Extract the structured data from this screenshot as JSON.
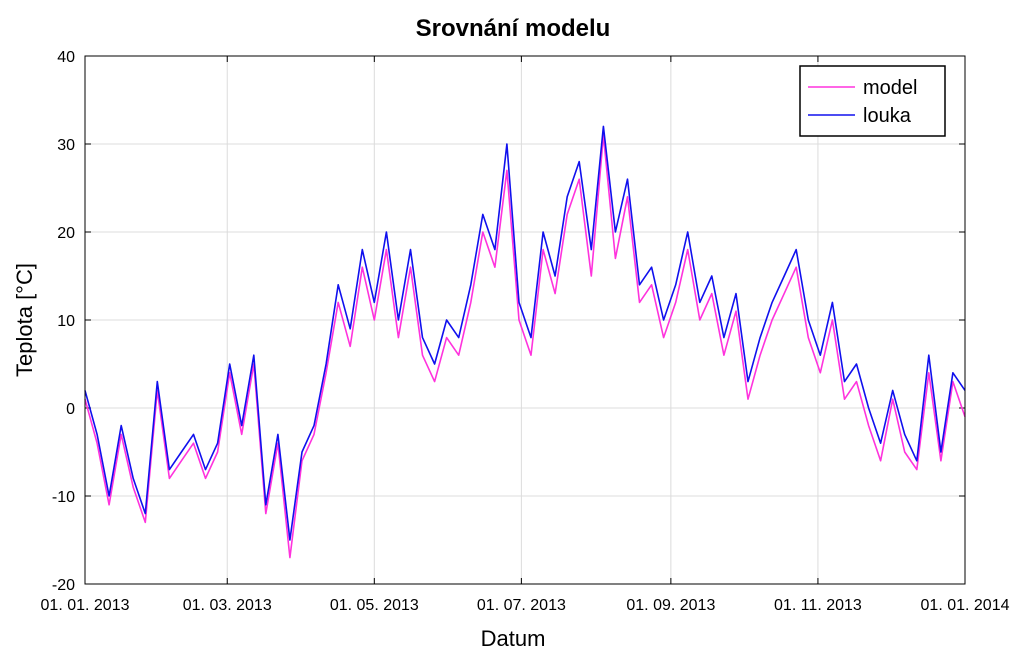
{
  "chart_data": {
    "type": "line",
    "title": "Srovnání modelu",
    "x_label": "Datum",
    "y_label": "Teplota [°C]",
    "x": [
      "2013-01-01",
      "2013-01-06",
      "2013-01-11",
      "2013-01-16",
      "2013-01-21",
      "2013-01-26",
      "2013-01-31",
      "2013-02-05",
      "2013-02-10",
      "2013-02-15",
      "2013-02-20",
      "2013-02-25",
      "2013-03-02",
      "2013-03-07",
      "2013-03-12",
      "2013-03-17",
      "2013-03-22",
      "2013-03-27",
      "2013-04-01",
      "2013-04-06",
      "2013-04-11",
      "2013-04-16",
      "2013-04-21",
      "2013-04-26",
      "2013-05-01",
      "2013-05-06",
      "2013-05-11",
      "2013-05-16",
      "2013-05-21",
      "2013-05-26",
      "2013-05-31",
      "2013-06-05",
      "2013-06-10",
      "2013-06-15",
      "2013-06-20",
      "2013-06-25",
      "2013-06-30",
      "2013-07-05",
      "2013-07-10",
      "2013-07-15",
      "2013-07-20",
      "2013-07-25",
      "2013-07-30",
      "2013-08-04",
      "2013-08-09",
      "2013-08-14",
      "2013-08-19",
      "2013-08-24",
      "2013-08-29",
      "2013-09-03",
      "2013-09-08",
      "2013-09-13",
      "2013-09-18",
      "2013-09-23",
      "2013-09-28",
      "2013-10-03",
      "2013-10-08",
      "2013-10-13",
      "2013-10-18",
      "2013-10-23",
      "2013-10-28",
      "2013-11-02",
      "2013-11-07",
      "2013-11-12",
      "2013-11-17",
      "2013-11-22",
      "2013-11-27",
      "2013-12-02",
      "2013-12-07",
      "2013-12-12",
      "2013-12-17",
      "2013-12-22",
      "2013-12-27",
      "2014-01-01"
    ],
    "series": [
      {
        "name": "model",
        "color": "#ff33dd",
        "values": [
          1,
          -4,
          -11,
          -3,
          -9,
          -13,
          2,
          -8,
          -6,
          -4,
          -8,
          -5,
          4,
          -3,
          5,
          -12,
          -4,
          -17,
          -6,
          -3,
          4,
          12,
          7,
          16,
          10,
          18,
          8,
          16,
          6,
          3,
          8,
          6,
          12,
          20,
          16,
          27,
          10,
          6,
          18,
          13,
          22,
          26,
          15,
          31,
          17,
          24,
          12,
          14,
          8,
          12,
          18,
          10,
          13,
          6,
          11,
          1,
          6,
          10,
          13,
          16,
          8,
          4,
          10,
          1,
          3,
          -2,
          -6,
          1,
          -5,
          -7,
          4,
          -6,
          3,
          -1
        ]
      },
      {
        "name": "louka",
        "color": "#1010ee",
        "values": [
          2,
          -3,
          -10,
          -2,
          -8,
          -12,
          3,
          -7,
          -5,
          -3,
          -7,
          -4,
          5,
          -2,
          6,
          -11,
          -3,
          -15,
          -5,
          -2,
          5,
          14,
          9,
          18,
          12,
          20,
          10,
          18,
          8,
          5,
          10,
          8,
          14,
          22,
          18,
          30,
          12,
          8,
          20,
          15,
          24,
          28,
          18,
          32,
          20,
          26,
          14,
          16,
          10,
          14,
          20,
          12,
          15,
          8,
          13,
          3,
          8,
          12,
          15,
          18,
          10,
          6,
          12,
          3,
          5,
          0,
          -4,
          2,
          -3,
          -6,
          6,
          -5,
          4,
          2
        ]
      }
    ],
    "xlim": [
      "2013-01-01",
      "2014-01-01"
    ],
    "xticks": [
      {
        "value": "2013-01-01",
        "label": "01. 01. 2013"
      },
      {
        "value": "2013-03-01",
        "label": "01. 03. 2013"
      },
      {
        "value": "2013-05-01",
        "label": "01. 05. 2013"
      },
      {
        "value": "2013-07-01",
        "label": "01. 07. 2013"
      },
      {
        "value": "2013-09-01",
        "label": "01. 09. 2013"
      },
      {
        "value": "2013-11-01",
        "label": "01. 11. 2013"
      },
      {
        "value": "2014-01-01",
        "label": "01. 01. 2014"
      }
    ],
    "ylim": [
      -20,
      40
    ],
    "yticks": [
      -20,
      -10,
      0,
      10,
      20,
      30,
      40
    ],
    "grid": true,
    "legend": "top-right"
  }
}
